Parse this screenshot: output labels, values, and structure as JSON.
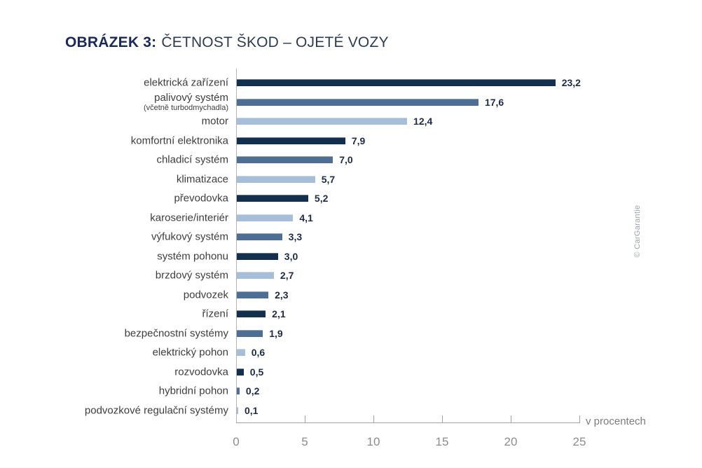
{
  "title": {
    "prefix": "OBRÁZEK 3:",
    "text": "ČETNOST ŠKOD – OJETÉ VOZY"
  },
  "watermark": "© CarGarantie",
  "chart_data": {
    "type": "bar",
    "orientation": "horizontal",
    "title": "OBRÁZEK 3: ČETNOST ŠKOD – OJETÉ VOZY",
    "unit_label": "v procentech",
    "xlim": [
      0,
      25
    ],
    "x_ticks": [
      0,
      5,
      10,
      15,
      20,
      25
    ],
    "grid": false,
    "legend": false,
    "palette": {
      "dark": "#132f4e",
      "medium": "#4d6e95",
      "light": "#a6bed7"
    },
    "bars": [
      {
        "label": "elektrická zařízení",
        "value": 23.2,
        "display": "23,2",
        "color": "dark"
      },
      {
        "label": "palivový systém",
        "sublabel": "(včetně turbodmychadla)",
        "value": 17.6,
        "display": "17,6",
        "color": "medium"
      },
      {
        "label": "motor",
        "value": 12.4,
        "display": "12,4",
        "color": "light"
      },
      {
        "label": "komfortní elektronika",
        "value": 7.9,
        "display": "7,9",
        "color": "dark"
      },
      {
        "label": "chladicí systém",
        "value": 7.0,
        "display": "7,0",
        "color": "medium"
      },
      {
        "label": "klimatizace",
        "value": 5.7,
        "display": "5,7",
        "color": "light"
      },
      {
        "label": "převodovka",
        "value": 5.2,
        "display": "5,2",
        "color": "dark"
      },
      {
        "label": "karoserie/interiér",
        "value": 4.1,
        "display": "4,1",
        "color": "light"
      },
      {
        "label": "výfukový systém",
        "value": 3.3,
        "display": "3,3",
        "color": "medium"
      },
      {
        "label": "systém pohonu",
        "value": 3.0,
        "display": "3,0",
        "color": "dark"
      },
      {
        "label": "brzdový systém",
        "value": 2.7,
        "display": "2,7",
        "color": "light"
      },
      {
        "label": "podvozek",
        "value": 2.3,
        "display": "2,3",
        "color": "medium"
      },
      {
        "label": "řízení",
        "value": 2.1,
        "display": "2,1",
        "color": "dark"
      },
      {
        "label": "bezpečnostní systémy",
        "value": 1.9,
        "display": "1,9",
        "color": "medium"
      },
      {
        "label": "elektrický pohon",
        "value": 0.6,
        "display": "0,6",
        "color": "light"
      },
      {
        "label": "rozvodovka",
        "value": 0.5,
        "display": "0,5",
        "color": "dark"
      },
      {
        "label": "hybridní pohon",
        "value": 0.2,
        "display": "0,2",
        "color": "medium"
      },
      {
        "label": "podvozkové regulační systémy",
        "value": 0.1,
        "display": "0,1",
        "color": "light"
      }
    ]
  }
}
